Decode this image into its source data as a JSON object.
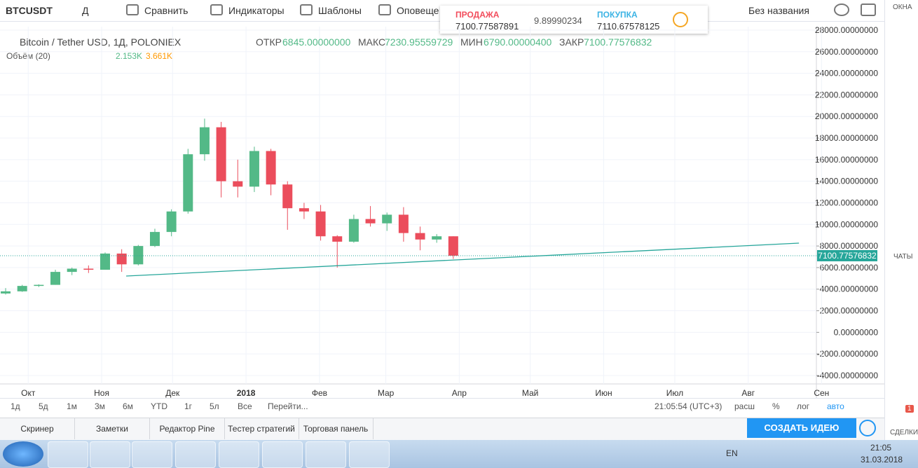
{
  "toolbar": {
    "symbol": "BTCUSDT",
    "interval": "Д",
    "items": [
      "Сравнить",
      "Индикаторы",
      "Шаблоны",
      "Оповеще"
    ],
    "layout_name": "Без названия"
  },
  "quote_panel": {
    "sell_label": "ПРОДАЖА",
    "sell_price": "7100.77587891",
    "spread": "9.89990234",
    "buy_label": "ПОКУПКА",
    "buy_price": "7110.67578125"
  },
  "sidebar": {
    "top": "ОКНА",
    "middle": "ЧАТЫ",
    "bottom": "СДЕЛКИ",
    "badge": "1"
  },
  "chart_data": {
    "type": "candlestick",
    "title": "Bitcoin / Tether USD, 1Д, POLONIEX",
    "legend": [
      {
        "label": "ОТКР",
        "value": "6845.00000000"
      },
      {
        "label": "МАКС",
        "value": "7230.95559729"
      },
      {
        "label": "МИН",
        "value": "6790.00000400"
      },
      {
        "label": "ЗАКР",
        "value": "7100.77576832"
      }
    ],
    "volume_legend": {
      "name": "Объём (20)",
      "values": [
        "2.153K",
        "3.661K"
      ]
    },
    "categories": [
      null,
      null,
      null,
      null,
      null,
      null,
      null,
      null,
      null,
      null,
      null,
      null,
      null,
      null,
      null,
      null,
      null,
      null,
      null,
      null,
      null,
      null,
      null,
      null,
      null,
      null,
      null,
      null
    ],
    "open": [
      3600,
      3800,
      4300,
      4400,
      5600,
      5900,
      5800,
      7300,
      6300,
      8000,
      9300,
      11200,
      16500,
      19000,
      14000,
      13500,
      16800,
      13700,
      11500,
      11200,
      8900,
      8400,
      10500,
      10100,
      10900,
      9200,
      8600,
      8900
    ],
    "high": [
      4100,
      4400,
      4450,
      5800,
      6000,
      6200,
      7400,
      7700,
      8100,
      9600,
      11400,
      17000,
      19800,
      19500,
      16000,
      17200,
      17000,
      14000,
      12000,
      11800,
      9000,
      10900,
      11700,
      11100,
      11600,
      9800,
      9100,
      8900
    ],
    "low": [
      3500,
      3750,
      4200,
      4400,
      5300,
      5500,
      5800,
      5600,
      6200,
      7900,
      8900,
      11000,
      15900,
      12500,
      12500,
      13000,
      12700,
      9500,
      10500,
      8500,
      6000,
      8300,
      9800,
      9400,
      8400,
      7600,
      8300,
      6800
    ],
    "close": [
      3800,
      4300,
      4400,
      5600,
      5900,
      5800,
      7300,
      6300,
      8000,
      9300,
      11200,
      16500,
      19000,
      14000,
      13500,
      16800,
      13700,
      11500,
      11200,
      8900,
      8400,
      10500,
      10100,
      10900,
      9200,
      8600,
      8900,
      7100
    ],
    "up_color": "#53b987",
    "down_color": "#eb4d5c",
    "last_price": {
      "value": 7100.77576832,
      "label": "7100.77576832"
    },
    "trendline": {
      "x": [
        7.27,
        47.85
      ],
      "values": [
        5215,
        8265
      ],
      "color": "#26a69a"
    },
    "xlim": [
      -0.34,
      48.9
    ],
    "xticks": [
      {
        "value": 1.36,
        "label": "Окт"
      },
      {
        "value": 5.79,
        "label": "Ноя"
      },
      {
        "value": 10.07,
        "label": "Дек"
      },
      {
        "value": 14.5,
        "label": "2018"
      },
      {
        "value": 18.93,
        "label": "Фев"
      },
      {
        "value": 22.93,
        "label": "Мар"
      },
      {
        "value": 27.36,
        "label": "Апр"
      },
      {
        "value": 31.64,
        "label": "Май"
      },
      {
        "value": 36.07,
        "label": "Июн"
      },
      {
        "value": 40.36,
        "label": "Июл"
      },
      {
        "value": 44.79,
        "label": "Авг"
      },
      {
        "value": 49.21,
        "label": "Сен"
      }
    ],
    "ylim": [
      -4779,
      28324
    ],
    "yticks": [
      {
        "value": 28000,
        "label": "28000.00000000"
      },
      {
        "value": 26000,
        "label": "26000.00000000"
      },
      {
        "value": 24000,
        "label": "24000.00000000"
      },
      {
        "value": 22000,
        "label": "22000.00000000"
      },
      {
        "value": 20000,
        "label": "20000.00000000"
      },
      {
        "value": 18000,
        "label": "18000.00000000"
      },
      {
        "value": 16000,
        "label": "16000.00000000"
      },
      {
        "value": 14000,
        "label": "14000.00000000"
      },
      {
        "value": 12000,
        "label": "12000.00000000"
      },
      {
        "value": 10000,
        "label": "10000.00000000"
      },
      {
        "value": 8000,
        "label": "8000.00000000"
      },
      {
        "value": 6000,
        "label": "6000.00000000"
      },
      {
        "value": 4000,
        "label": "4000.00000000"
      },
      {
        "value": 2000,
        "label": "2000.00000000"
      },
      {
        "value": 0,
        "label": "0.00000000"
      },
      {
        "value": -2000,
        "label": "-2000.00000000"
      },
      {
        "value": -4000,
        "label": "-4000.00000000"
      }
    ],
    "grid": true
  },
  "range_bar": {
    "ranges": [
      "1д",
      "5д",
      "1м",
      "3м",
      "6м",
      "YTD",
      "1г",
      "5л",
      "Все",
      "Перейти..."
    ],
    "time": "21:05:54 (UTC+3)",
    "options": [
      "расш",
      "%",
      "лог",
      "авто"
    ]
  },
  "bottom_panel": {
    "tabs": [
      "Скринер",
      "Заметки",
      "Редактор Pine",
      "Тестер стратегий",
      "Торговая панель"
    ],
    "button": "СОЗДАТЬ ИДЕЮ"
  },
  "taskbar": {
    "lang": "EN",
    "time": "21:05",
    "date": "31.03.2018"
  }
}
